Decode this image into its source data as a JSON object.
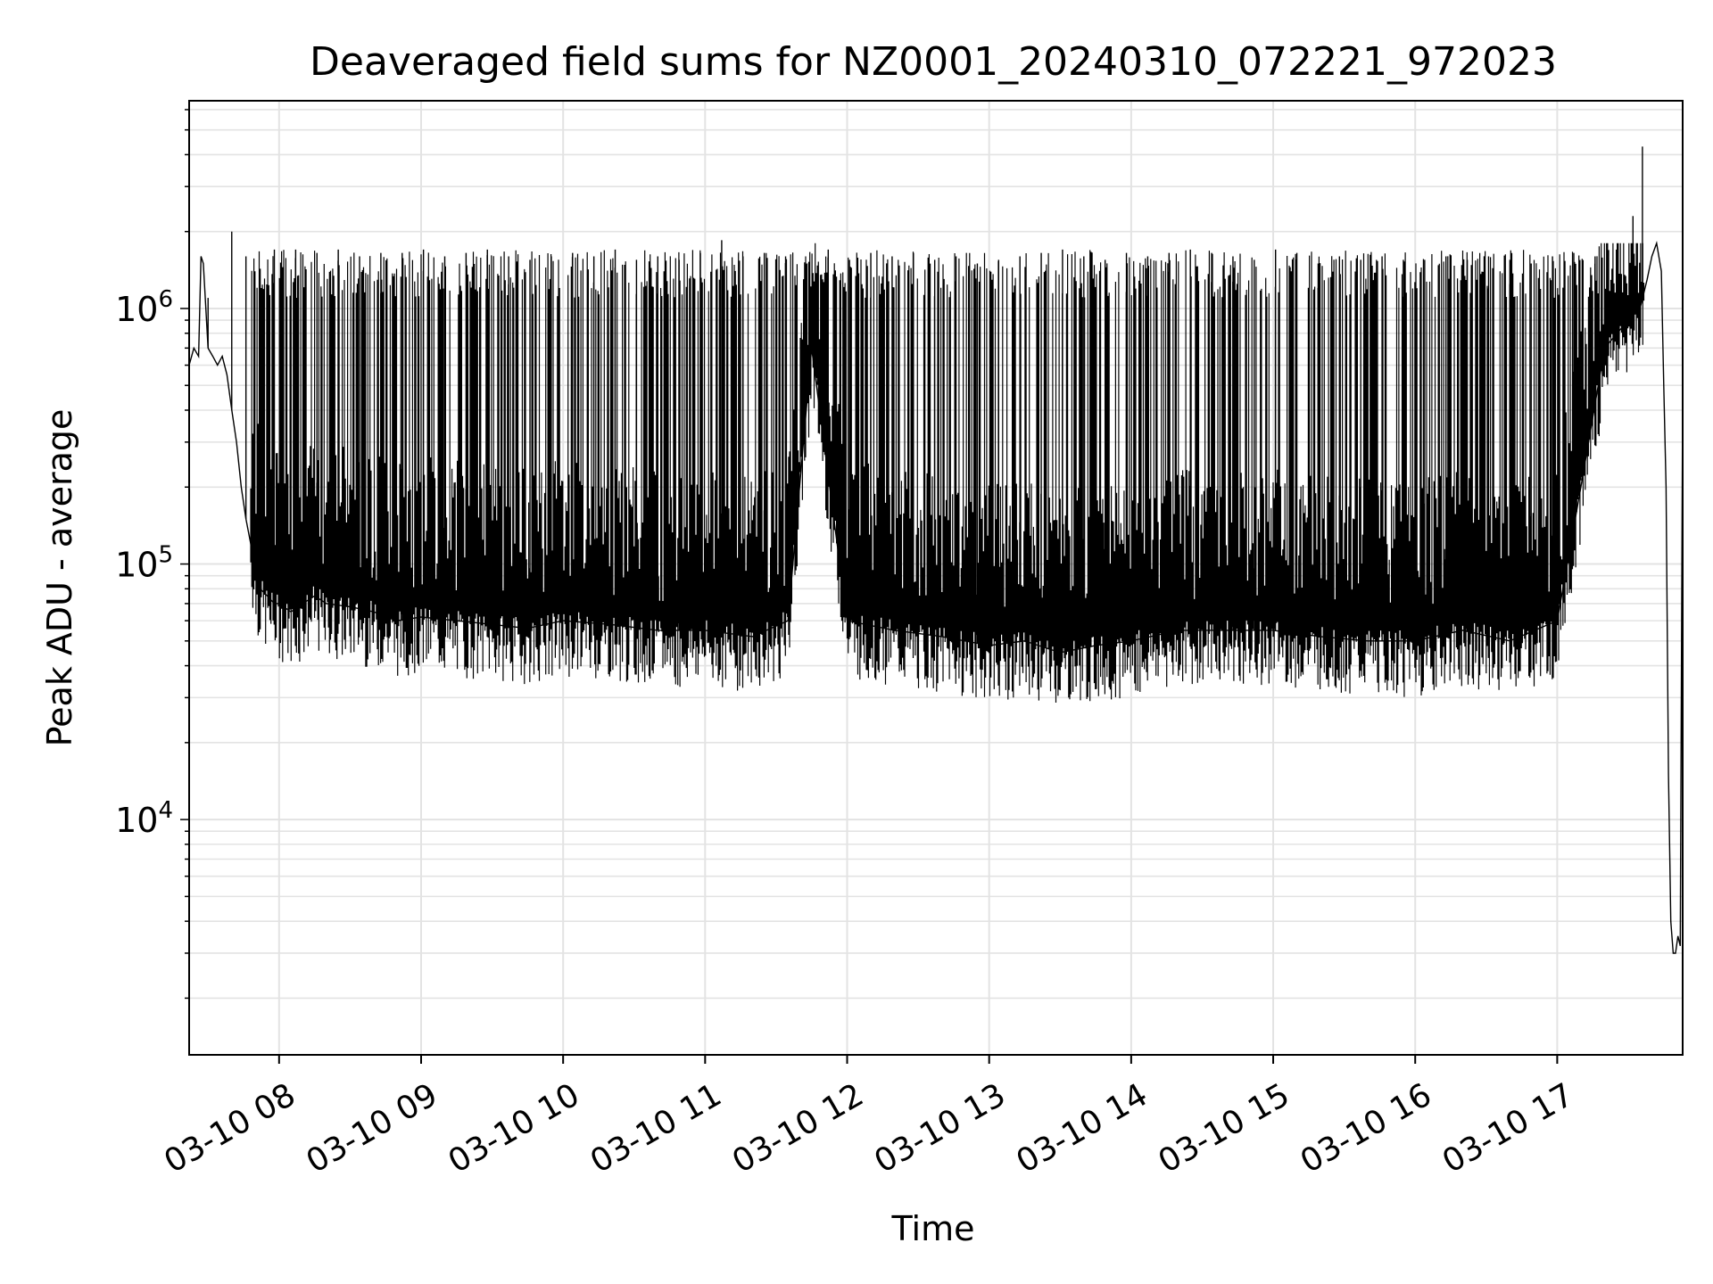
{
  "chart_data": {
    "type": "line",
    "title": "Deaveraged field sums for NZ0001_20240310_072221_972023",
    "xlabel": "Time",
    "ylabel": "Peak ADU - average",
    "yscale": "log",
    "xlim": [
      "2024-03-10 07:22",
      "2024-03-10 17:53"
    ],
    "ylim": [
      1200,
      6500000
    ],
    "grid": true,
    "line_color": "#000000",
    "x_ticks": [
      "03-10 08",
      "03-10 09",
      "03-10 10",
      "03-10 11",
      "03-10 12",
      "03-10 13",
      "03-10 14",
      "03-10 15",
      "03-10 16",
      "03-10 17"
    ],
    "y_ticks": [
      {
        "value": 10000,
        "base": "10",
        "exp": "4"
      },
      {
        "value": 100000,
        "base": "10",
        "exp": "5"
      },
      {
        "value": 1000000,
        "base": "10",
        "exp": "6"
      }
    ],
    "series": [
      {
        "x": [
          "2024-03-10 07:22",
          "2024-03-10 07:24",
          "2024-03-10 07:26",
          "2024-03-10 07:27",
          "2024-03-10 07:28",
          "2024-03-10 07:30",
          "2024-03-10 07:32",
          "2024-03-10 07:34",
          "2024-03-10 07:36",
          "2024-03-10 07:38",
          "2024-03-10 07:40",
          "2024-03-10 07:42",
          "2024-03-10 07:44",
          "2024-03-10 07:46",
          "2024-03-10 07:48",
          "2024-03-10 07:50",
          "2024-03-10 07:52",
          "2024-03-10 07:55",
          "2024-03-10 07:58",
          "2024-03-10 08:00",
          "2024-03-10 08:05",
          "2024-03-10 08:10",
          "2024-03-10 08:15",
          "2024-03-10 08:20",
          "2024-03-10 08:30",
          "2024-03-10 08:40",
          "2024-03-10 08:50",
          "2024-03-10 09:00",
          "2024-03-10 09:15",
          "2024-03-10 09:30",
          "2024-03-10 09:45",
          "2024-03-10 10:00",
          "2024-03-10 10:20",
          "2024-03-10 10:40",
          "2024-03-10 11:00",
          "2024-03-10 11:20",
          "2024-03-10 11:35",
          "2024-03-10 11:45",
          "2024-03-10 12:00",
          "2024-03-10 12:20",
          "2024-03-10 12:40",
          "2024-03-10 13:00",
          "2024-03-10 13:15",
          "2024-03-10 13:30",
          "2024-03-10 13:45",
          "2024-03-10 14:00",
          "2024-03-10 14:20",
          "2024-03-10 14:40",
          "2024-03-10 15:00",
          "2024-03-10 15:20",
          "2024-03-10 15:40",
          "2024-03-10 16:00",
          "2024-03-10 16:20",
          "2024-03-10 16:40",
          "2024-03-10 17:00",
          "2024-03-10 17:10",
          "2024-03-10 17:20",
          "2024-03-10 17:30",
          "2024-03-10 17:35",
          "2024-03-10 17:38",
          "2024-03-10 17:40",
          "2024-03-10 17:42",
          "2024-03-10 17:44",
          "2024-03-10 17:45",
          "2024-03-10 17:46",
          "2024-03-10 17:47",
          "2024-03-10 17:48",
          "2024-03-10 17:49",
          "2024-03-10 17:50",
          "2024-03-10 17:51",
          "2024-03-10 17:52",
          "2024-03-10 17:53"
        ],
        "y": [
          600000,
          700000,
          650000,
          1600000,
          1500000,
          700000,
          650000,
          600000,
          650000,
          550000,
          400000,
          300000,
          200000,
          150000,
          120000,
          90000,
          80000,
          75000,
          70000,
          70000,
          65000,
          70000,
          75000,
          70000,
          68000,
          65000,
          60000,
          62000,
          60000,
          58000,
          56000,
          60000,
          58000,
          55000,
          55000,
          52000,
          60000,
          700000,
          60000,
          55000,
          52000,
          48000,
          50000,
          45000,
          48000,
          50000,
          55000,
          55000,
          55000,
          52000,
          50000,
          50000,
          55000,
          50000,
          60000,
          200000,
          700000,
          900000,
          1000000,
          1300000,
          1600000,
          1800000,
          1400000,
          500000,
          200000,
          15000,
          4000,
          3000,
          3000,
          3500,
          3200,
          500000
        ]
      }
    ],
    "spikes": {
      "note": "",
      "x": [
        "2024-03-10 07:30",
        "2024-03-10 07:40",
        "2024-03-10 07:46",
        "2024-03-10 07:58",
        "2024-03-10 08:07",
        "2024-03-10 08:16",
        "2024-03-10 08:25",
        "2024-03-10 08:34",
        "2024-03-10 08:43",
        "2024-03-10 08:52",
        "2024-03-10 09:01",
        "2024-03-10 09:10",
        "2024-03-10 09:19",
        "2024-03-10 09:28",
        "2024-03-10 09:37",
        "2024-03-10 09:46",
        "2024-03-10 09:55",
        "2024-03-10 10:04",
        "2024-03-10 10:13",
        "2024-03-10 10:22",
        "2024-03-10 10:31",
        "2024-03-10 10:40",
        "2024-03-10 10:49",
        "2024-03-10 10:58",
        "2024-03-10 11:07",
        "2024-03-10 11:16",
        "2024-03-10 11:25",
        "2024-03-10 11:34",
        "2024-03-10 11:43",
        "2024-03-10 11:52",
        "2024-03-10 12:01",
        "2024-03-10 12:10",
        "2024-03-10 12:19",
        "2024-03-10 12:28",
        "2024-03-10 12:37",
        "2024-03-10 12:46",
        "2024-03-10 12:55",
        "2024-03-10 13:04",
        "2024-03-10 13:13",
        "2024-03-10 13:22",
        "2024-03-10 13:31",
        "2024-03-10 13:40",
        "2024-03-10 13:49",
        "2024-03-10 13:58",
        "2024-03-10 14:07",
        "2024-03-10 14:16",
        "2024-03-10 14:25",
        "2024-03-10 14:34",
        "2024-03-10 14:43",
        "2024-03-10 14:52",
        "2024-03-10 15:01",
        "2024-03-10 15:10",
        "2024-03-10 15:19",
        "2024-03-10 15:28",
        "2024-03-10 15:37",
        "2024-03-10 15:46",
        "2024-03-10 15:55",
        "2024-03-10 16:04",
        "2024-03-10 16:13",
        "2024-03-10 16:22",
        "2024-03-10 16:31",
        "2024-03-10 16:40",
        "2024-03-10 16:49",
        "2024-03-10 16:58",
        "2024-03-10 17:07",
        "2024-03-10 17:16",
        "2024-03-10 17:25",
        "2024-03-10 17:32",
        "2024-03-10 17:36"
      ],
      "y": [
        1100000,
        2000000,
        1600000,
        1700000,
        1700000,
        1650000,
        1700000,
        1600000,
        1650000,
        1650000,
        1700000,
        1600000,
        1650000,
        1700000,
        1600000,
        1550000,
        1600000,
        1650000,
        1600000,
        1700000,
        1550000,
        1600000,
        1550000,
        1650000,
        1850000,
        1600000,
        1650000,
        1600000,
        1500000,
        1700000,
        1550000,
        1650000,
        1600000,
        1650000,
        1550000,
        1600000,
        1500000,
        1550000,
        1600000,
        1650000,
        1700000,
        1600000,
        1550000,
        1650000,
        1600000,
        1650000,
        1700000,
        1650000,
        1600000,
        1550000,
        1700000,
        1650000,
        1500000,
        1600000,
        1550000,
        1600000,
        1550000,
        1550000,
        1600000,
        1550000,
        1600000,
        1550000,
        1500000,
        1600000,
        1650000,
        1600000,
        1700000,
        2300000,
        4300000
      ]
    }
  }
}
